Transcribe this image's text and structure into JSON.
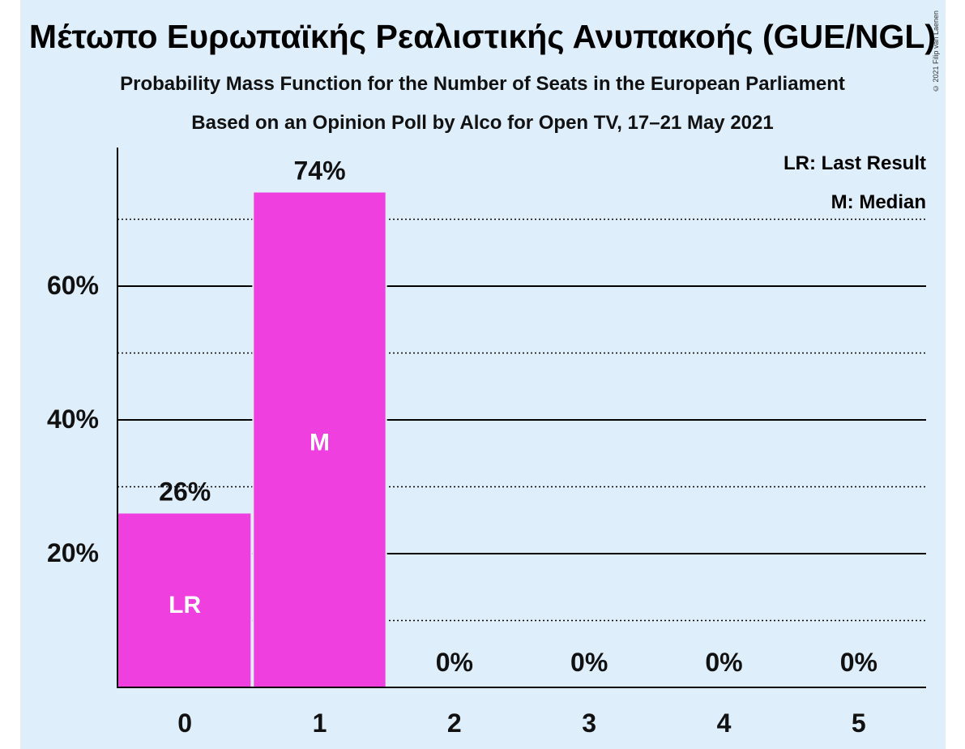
{
  "header": {
    "title": "Μέτωπο Ευρωπαϊκής Ρεαλιστικής Ανυπακοής (GUE/NGL)",
    "subtitle_line1": "Probability Mass Function for the Number of Seats in the European Parliament",
    "subtitle_line2": "Based on an Opinion Poll by Alco for Open TV, 17–21 May 2021",
    "copyright": "© 2021 Filip van Laenen"
  },
  "legend": {
    "last_result": "LR: Last Result",
    "median": "M: Median"
  },
  "colors": {
    "background": "#dfeefb",
    "bar": "#ef3fdf",
    "axis": "#000000"
  },
  "chart_data": {
    "type": "bar",
    "categories": [
      "0",
      "1",
      "2",
      "3",
      "4",
      "5"
    ],
    "values": [
      26,
      74,
      0,
      0,
      0,
      0
    ],
    "value_labels": [
      "26%",
      "74%",
      "0%",
      "0%",
      "0%",
      "0%"
    ],
    "bar_markers": [
      "LR",
      "M",
      "",
      "",
      "",
      ""
    ],
    "yticks": [
      20,
      40,
      60
    ],
    "ytick_labels": [
      "20%",
      "40%",
      "60%"
    ],
    "ylim": [
      0,
      80
    ],
    "minor_gridlines": [
      10,
      30,
      50,
      70
    ],
    "grid": true,
    "legend_position": "top-right"
  }
}
